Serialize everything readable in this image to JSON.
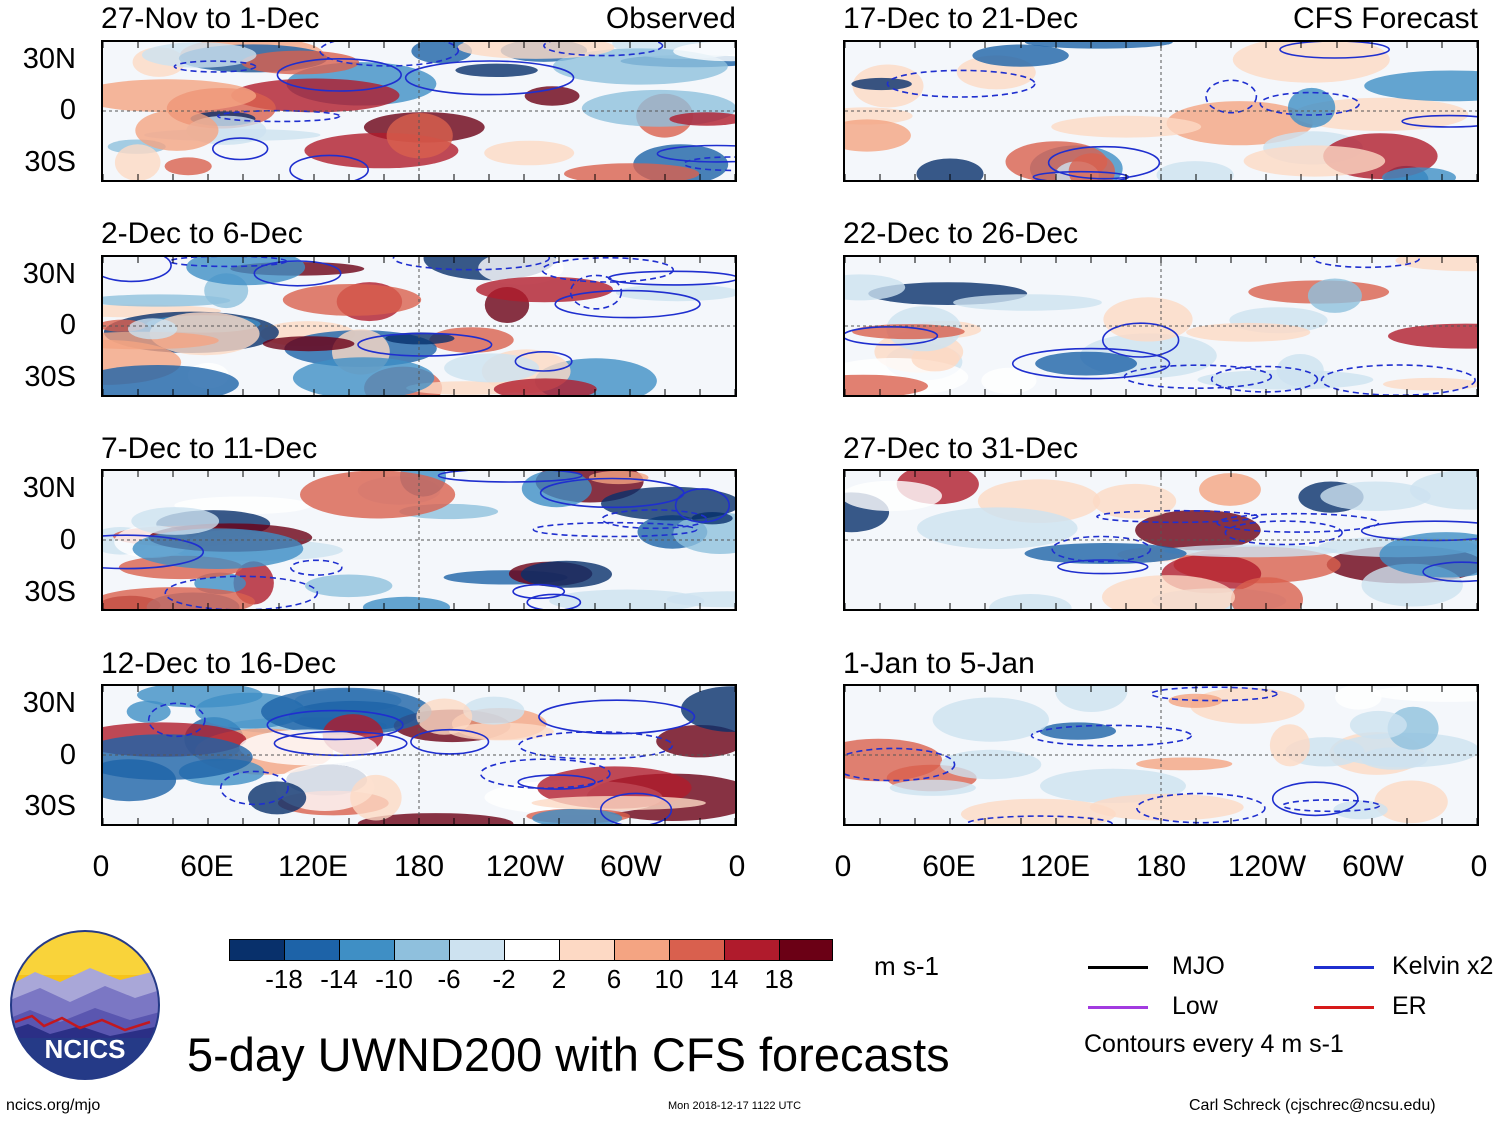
{
  "panels_observed": {
    "tag": "Observed",
    "titles": [
      "27-Nov to 1-Dec",
      "2-Dec to 6-Dec",
      "7-Dec to 11-Dec",
      "12-Dec to 16-Dec"
    ]
  },
  "panels_forecast": {
    "tag": "CFS Forecast",
    "titles": [
      "17-Dec to 21-Dec",
      "22-Dec to 26-Dec",
      "27-Dec to 31-Dec",
      "1-Jan to 5-Jan"
    ]
  },
  "lat_labels": [
    "30N",
    "0",
    "30S"
  ],
  "lon_labels": [
    "0",
    "60E",
    "120E",
    "180",
    "120W",
    "60W",
    "0"
  ],
  "colorbar": {
    "colors": [
      "#08306b",
      "#1d63a8",
      "#3f8fc5",
      "#8fc0dd",
      "#cde2f0",
      "#ffffff",
      "#fdd9c4",
      "#f4a482",
      "#d9604e",
      "#b01b2c",
      "#6b0015"
    ],
    "ticks": [
      "-18",
      "-14",
      "-10",
      "-6",
      "-2",
      "2",
      "6",
      "10",
      "14",
      "18"
    ],
    "units": "m s-1"
  },
  "legend": {
    "items": [
      {
        "label": "MJO",
        "color": "#000000"
      },
      {
        "label": "Kelvin x2",
        "color": "#1f2fcf"
      },
      {
        "label": "Low",
        "color": "#a23be0"
      },
      {
        "label": "ER",
        "color": "#d61a1a"
      }
    ],
    "note": "Contours every 4 m s-1"
  },
  "logo": {
    "text": "NCICS"
  },
  "main_title": "5-day UWND200 with CFS forecasts",
  "footer": {
    "left": "ncics.org/mjo",
    "center": "Mon 2018-12-17 1122 UTC",
    "right": "Carl Schreck (cjschrec@ncsu.edu)"
  }
}
